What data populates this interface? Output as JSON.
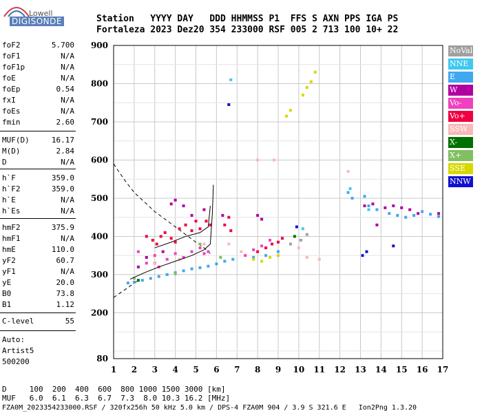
{
  "logo": {
    "top": "Lowell",
    "bottom": "DIGISONDE"
  },
  "header": {
    "labels": "Station   YYYY DAY   DDD HHMMSS P1  FFS S AXN PPS IGA PS",
    "values": "Fortaleza 2023 Dez20 354 233000 RSF 005 2 713 100 10+ 22"
  },
  "params": [
    {
      "name": "foF2",
      "value": "5.700"
    },
    {
      "name": "foF1",
      "value": "N/A"
    },
    {
      "name": "foF1p",
      "value": "N/A"
    },
    {
      "name": "foE",
      "value": "N/A"
    },
    {
      "name": "foEp",
      "value": "0.54"
    },
    {
      "name": "fxI",
      "value": "N/A"
    },
    {
      "name": "foEs",
      "value": "N/A"
    },
    {
      "name": "fmin",
      "value": "2.60"
    },
    {
      "name": "MUF(D)",
      "value": "16.17"
    },
    {
      "name": "M(D)",
      "value": "2.84"
    },
    {
      "name": "D",
      "value": "N/A"
    },
    {
      "name": "h`F",
      "value": "359.0"
    },
    {
      "name": "h`F2",
      "value": "359.0"
    },
    {
      "name": "h`E",
      "value": "N/A"
    },
    {
      "name": "h`Es",
      "value": "N/A"
    },
    {
      "name": "hmF2",
      "value": "375.9"
    },
    {
      "name": "hmF1",
      "value": "N/A"
    },
    {
      "name": "hmE",
      "value": "110.0"
    },
    {
      "name": "yF2",
      "value": "60.7"
    },
    {
      "name": "yF1",
      "value": "N/A"
    },
    {
      "name": "yE",
      "value": "20.0"
    },
    {
      "name": "B0",
      "value": "73.8"
    },
    {
      "name": "B1",
      "value": "1.12"
    },
    {
      "name": "C-level",
      "value": "55"
    }
  ],
  "auto": {
    "line1": "Auto:",
    "line2": "Artist5",
    "line3": "500200"
  },
  "legend": [
    {
      "label": "NoVal",
      "color": "#a0a0a0"
    },
    {
      "label": "NNE",
      "color": "#40c8f0"
    },
    {
      "label": "E",
      "color": "#40a8f0"
    },
    {
      "label": "W",
      "color": "#b000a0"
    },
    {
      "label": "Vo-",
      "color": "#f040c0"
    },
    {
      "label": "Vo+",
      "color": "#f00040"
    },
    {
      "label": "SSW",
      "color": "#f8b8b8"
    },
    {
      "label": "X-",
      "color": "#007000"
    },
    {
      "label": "X+",
      "color": "#80c060"
    },
    {
      "label": "SSE",
      "color": "#d8d800"
    },
    {
      "label": "NNW",
      "color": "#1010d0"
    }
  ],
  "footer": {
    "row_d": "D     100  200  400  600  800 1000 1500 3000 [km]",
    "row_muf": "MUF   6.0  6.1  6.3  6.7  7.3  8.0 10.3 16.2 [MHz]",
    "file": "FZA0M_2023354233000.RSF / 320fx256h 50 kHz 5.0 km / DPS-4 FZA0M 904 / 3.9 S 321.6 E   Ion2Png 1.3.20"
  },
  "chart_data": {
    "type": "scatter",
    "xlim": [
      1,
      17
    ],
    "ylim": [
      80,
      900
    ],
    "x_ticks": [
      1,
      2,
      3,
      4,
      5,
      6,
      7,
      8,
      9,
      10,
      11,
      12,
      13,
      14,
      15,
      16,
      17
    ],
    "y_ticks": [
      80,
      200,
      300,
      400,
      500,
      600,
      700,
      800,
      900
    ],
    "grid": true,
    "traces": [
      {
        "name": "E",
        "color": "#40a8f0",
        "points": [
          [
            1.7,
            278
          ],
          [
            2.0,
            280
          ],
          [
            2.4,
            285
          ],
          [
            2.8,
            290
          ],
          [
            3.2,
            295
          ],
          [
            3.6,
            300
          ],
          [
            4.0,
            305
          ],
          [
            4.4,
            310
          ],
          [
            4.8,
            315
          ],
          [
            5.2,
            318
          ],
          [
            5.6,
            322
          ],
          [
            6.0,
            328
          ],
          [
            6.4,
            335
          ],
          [
            6.8,
            340
          ],
          [
            7.8,
            345
          ],
          [
            8.4,
            350
          ],
          [
            9.0,
            360
          ]
        ]
      },
      {
        "name": "E",
        "color": "#40a8f0",
        "points": [
          [
            12.4,
            515
          ],
          [
            12.6,
            500
          ],
          [
            13.2,
            505
          ],
          [
            13.4,
            480
          ],
          [
            13.8,
            470
          ],
          [
            14.4,
            460
          ],
          [
            14.8,
            455
          ],
          [
            15.2,
            450
          ],
          [
            15.6,
            455
          ],
          [
            16.0,
            465
          ],
          [
            16.4,
            458
          ],
          [
            16.8,
            452
          ]
        ]
      },
      {
        "name": "Vo+",
        "color": "#f00040",
        "points": [
          [
            2.6,
            400
          ],
          [
            2.9,
            390
          ],
          [
            3.1,
            380
          ],
          [
            3.3,
            400
          ],
          [
            3.5,
            410
          ],
          [
            3.8,
            395
          ],
          [
            4.0,
            385
          ],
          [
            4.2,
            420
          ],
          [
            4.5,
            430
          ],
          [
            4.8,
            415
          ],
          [
            5.0,
            440
          ],
          [
            5.2,
            420
          ],
          [
            5.5,
            440
          ],
          [
            5.7,
            430
          ],
          [
            6.4,
            430
          ],
          [
            6.6,
            450
          ],
          [
            6.7,
            415
          ],
          [
            8.0,
            360
          ],
          [
            8.4,
            370
          ],
          [
            8.7,
            380
          ],
          [
            9.0,
            385
          ],
          [
            9.2,
            395
          ]
        ]
      },
      {
        "name": "Vo-",
        "color": "#f040c0",
        "points": [
          [
            2.2,
            360
          ],
          [
            2.6,
            330
          ],
          [
            3.0,
            350
          ],
          [
            3.2,
            320
          ],
          [
            3.6,
            340
          ],
          [
            4.0,
            355
          ],
          [
            4.4,
            345
          ],
          [
            4.8,
            360
          ],
          [
            5.2,
            370
          ],
          [
            5.4,
            355
          ],
          [
            5.6,
            360
          ],
          [
            7.4,
            350
          ],
          [
            7.8,
            365
          ],
          [
            8.2,
            375
          ],
          [
            8.6,
            390
          ]
        ]
      },
      {
        "name": "W",
        "color": "#b000a0",
        "points": [
          [
            2.2,
            320
          ],
          [
            2.6,
            345
          ],
          [
            3.0,
            330
          ],
          [
            3.4,
            360
          ],
          [
            3.8,
            485
          ],
          [
            4.0,
            495
          ],
          [
            4.4,
            480
          ],
          [
            4.8,
            455
          ],
          [
            5.4,
            470
          ],
          [
            6.3,
            455
          ],
          [
            8.0,
            455
          ],
          [
            8.2,
            445
          ],
          [
            13.2,
            480
          ],
          [
            13.6,
            485
          ],
          [
            14.2,
            475
          ],
          [
            14.6,
            480
          ],
          [
            15.0,
            475
          ],
          [
            15.4,
            470
          ],
          [
            15.8,
            460
          ],
          [
            16.8,
            460
          ],
          [
            13.8,
            430
          ]
        ]
      },
      {
        "name": "SSW",
        "color": "#f8b8b8",
        "points": [
          [
            3.0,
            330
          ],
          [
            4.2,
            340
          ],
          [
            5.4,
            380
          ],
          [
            6.6,
            380
          ],
          [
            7.2,
            360
          ],
          [
            8.0,
            600
          ],
          [
            8.8,
            600
          ],
          [
            10.0,
            370
          ],
          [
            10.4,
            345
          ],
          [
            11.0,
            340
          ],
          [
            12.4,
            570
          ]
        ]
      },
      {
        "name": "SSE",
        "color": "#d8d800",
        "points": [
          [
            7.8,
            340
          ],
          [
            8.2,
            335
          ],
          [
            8.6,
            345
          ],
          [
            9.0,
            350
          ],
          [
            9.4,
            715
          ],
          [
            9.6,
            730
          ],
          [
            10.2,
            770
          ],
          [
            10.4,
            790
          ],
          [
            10.6,
            805
          ],
          [
            10.8,
            830
          ]
        ]
      },
      {
        "name": "X+",
        "color": "#80c060",
        "points": [
          [
            2.0,
            290
          ],
          [
            4.0,
            302
          ],
          [
            5.2,
            380
          ],
          [
            6.2,
            345
          ]
        ]
      },
      {
        "name": "X-",
        "color": "#007000",
        "points": [
          [
            2.2,
            285
          ],
          [
            9.8,
            400
          ]
        ]
      },
      {
        "name": "NNW",
        "color": "#1010d0",
        "points": [
          [
            6.6,
            745
          ],
          [
            13.1,
            350
          ],
          [
            13.3,
            360
          ],
          [
            14.6,
            375
          ],
          [
            9.9,
            425
          ]
        ]
      },
      {
        "name": "NNE",
        "color": "#40c8f0",
        "points": [
          [
            6.7,
            810
          ],
          [
            12.5,
            525
          ],
          [
            10.2,
            420
          ],
          [
            13.4,
            470
          ]
        ]
      },
      {
        "name": "NoVal",
        "color": "#a0a0a0",
        "points": [
          [
            9.6,
            380
          ],
          [
            10.1,
            390
          ],
          [
            10.4,
            405
          ]
        ]
      }
    ],
    "profile_curve": [
      [
        1.0,
        590
      ],
      [
        1.5,
        550
      ],
      [
        2.0,
        515
      ],
      [
        2.5,
        490
      ],
      [
        3.0,
        465
      ],
      [
        3.5,
        445
      ],
      [
        4.0,
        425
      ],
      [
        4.5,
        405
      ],
      [
        5.0,
        385
      ],
      [
        5.4,
        370
      ],
      [
        5.7,
        355
      ]
    ],
    "profile_lower": [
      [
        1.0,
        240
      ],
      [
        1.4,
        255
      ],
      [
        1.8,
        270
      ],
      [
        2.2,
        285
      ]
    ],
    "trace_lines": [
      [
        [
          1.8,
          288
        ],
        [
          2.5,
          305
        ],
        [
          3.2,
          320
        ],
        [
          4.0,
          335
        ],
        [
          4.8,
          350
        ],
        [
          5.4,
          365
        ],
        [
          5.7,
          380
        ],
        [
          5.8,
          460
        ],
        [
          5.85,
          535
        ]
      ],
      [
        [
          3.0,
          370
        ],
        [
          3.8,
          385
        ],
        [
          4.5,
          400
        ],
        [
          5.2,
          410
        ],
        [
          5.6,
          425
        ],
        [
          5.7,
          480
        ]
      ]
    ]
  }
}
